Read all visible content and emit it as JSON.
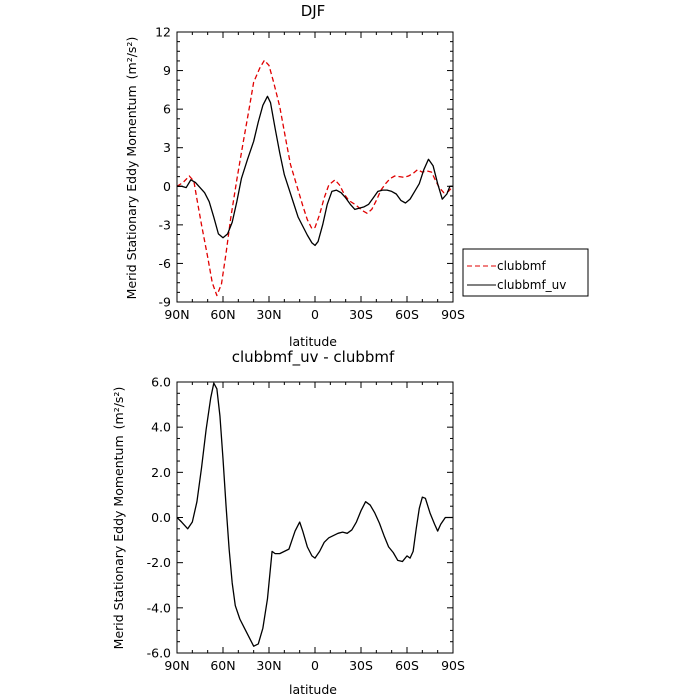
{
  "chart_data": [
    {
      "type": "line",
      "title": "DJF",
      "xlabel": "latitude",
      "ylabel": "Merid Stationary Eddy Momentum",
      "ylabel_unit": "(m²/s²)",
      "x_tick_labels": [
        "90N",
        "60N",
        "30N",
        "0",
        "30S",
        "60S",
        "90S"
      ],
      "x_ticks": [
        90,
        60,
        30,
        0,
        -30,
        -60,
        -90
      ],
      "xlim": [
        90,
        -90
      ],
      "ylim": [
        -9,
        12
      ],
      "y_ticks": [
        -9,
        -6,
        -3,
        0,
        3,
        6,
        9,
        12
      ],
      "y_tick_labels": [
        "-9",
        "-6",
        "-3",
        "0",
        "3",
        "6",
        "9",
        "12"
      ],
      "legend_position": "right, outside plot, lower",
      "series": [
        {
          "name": "clubbmf",
          "color": "#e00000",
          "dash": "dashed",
          "points": [
            [
              90,
              0
            ],
            [
              86,
              0.3
            ],
            [
              82,
              0.8
            ],
            [
              79,
              0.4
            ],
            [
              77,
              -1
            ],
            [
              74,
              -3
            ],
            [
              70,
              -5.5
            ],
            [
              67,
              -7.5
            ],
            [
              64,
              -8.5
            ],
            [
              61,
              -7.6
            ],
            [
              58,
              -5.2
            ],
            [
              55,
              -2.5
            ],
            [
              51,
              0.5
            ],
            [
              47,
              3.3
            ],
            [
              43,
              6
            ],
            [
              40,
              8.1
            ],
            [
              36,
              9.2
            ],
            [
              33,
              9.8
            ],
            [
              30,
              9.4
            ],
            [
              27,
              8.1
            ],
            [
              23,
              6.2
            ],
            [
              19,
              3.6
            ],
            [
              16,
              1.7
            ],
            [
              12,
              0.1
            ],
            [
              8,
              -1.5
            ],
            [
              5,
              -2.6
            ],
            [
              2,
              -3.3
            ],
            [
              0,
              -3.2
            ],
            [
              -3,
              -2.2
            ],
            [
              -6,
              -0.9
            ],
            [
              -9,
              0.1
            ],
            [
              -13,
              0.5
            ],
            [
              -16,
              0.1
            ],
            [
              -19,
              -0.6
            ],
            [
              -22,
              -1.1
            ],
            [
              -26,
              -1.4
            ],
            [
              -29,
              -1.7
            ],
            [
              -31,
              -1.9
            ],
            [
              -34,
              -2.1
            ],
            [
              -37,
              -1.8
            ],
            [
              -40,
              -1.1
            ],
            [
              -43,
              -0.3
            ],
            [
              -46,
              0.2
            ],
            [
              -49,
              0.6
            ],
            [
              -52,
              0.8
            ],
            [
              -55,
              0.75
            ],
            [
              -58,
              0.7
            ],
            [
              -61,
              0.8
            ],
            [
              -64,
              1
            ],
            [
              -67,
              1.3
            ],
            [
              -70,
              1.1
            ],
            [
              -73,
              1.2
            ],
            [
              -76,
              1.1
            ],
            [
              -78,
              0.6
            ],
            [
              -81,
              -0.1
            ],
            [
              -84,
              -0.5
            ],
            [
              -87,
              -0.4
            ],
            [
              -90,
              0
            ]
          ]
        },
        {
          "name": "clubbmf_uv",
          "color": "#000000",
          "dash": "solid",
          "points": [
            [
              90,
              0
            ],
            [
              87,
              0
            ],
            [
              84,
              -0.1
            ],
            [
              81,
              0.5
            ],
            [
              78,
              0.3
            ],
            [
              75,
              -0.1
            ],
            [
              72,
              -0.5
            ],
            [
              69,
              -1.2
            ],
            [
              66,
              -2.4
            ],
            [
              63,
              -3.7
            ],
            [
              60,
              -4
            ],
            [
              57,
              -3.7
            ],
            [
              54,
              -2.8
            ],
            [
              51,
              -1.2
            ],
            [
              48,
              0.6
            ],
            [
              44,
              2.1
            ],
            [
              40,
              3.5
            ],
            [
              37,
              5
            ],
            [
              34,
              6.3
            ],
            [
              31,
              7
            ],
            [
              29,
              6.5
            ],
            [
              26,
              4.5
            ],
            [
              23,
              2.6
            ],
            [
              20,
              0.9
            ],
            [
              17,
              -0.2
            ],
            [
              14,
              -1.3
            ],
            [
              11,
              -2.4
            ],
            [
              8,
              -3.1
            ],
            [
              5,
              -3.8
            ],
            [
              2,
              -4.4
            ],
            [
              0,
              -4.6
            ],
            [
              -2,
              -4.3
            ],
            [
              -5,
              -3
            ],
            [
              -8,
              -1.4
            ],
            [
              -11,
              -0.4
            ],
            [
              -14,
              -0.3
            ],
            [
              -17,
              -0.5
            ],
            [
              -20,
              -0.9
            ],
            [
              -23,
              -1.4
            ],
            [
              -26,
              -1.8
            ],
            [
              -29,
              -1.7
            ],
            [
              -32,
              -1.6
            ],
            [
              -35,
              -1.4
            ],
            [
              -38,
              -0.9
            ],
            [
              -41,
              -0.4
            ],
            [
              -44,
              -0.3
            ],
            [
              -47,
              -0.3
            ],
            [
              -50,
              -0.4
            ],
            [
              -53,
              -0.6
            ],
            [
              -56,
              -1.1
            ],
            [
              -59,
              -1.3
            ],
            [
              -62,
              -1
            ],
            [
              -65,
              -0.4
            ],
            [
              -68,
              0.2
            ],
            [
              -71,
              1.3
            ],
            [
              -74,
              2.1
            ],
            [
              -77,
              1.6
            ],
            [
              -80,
              0.2
            ],
            [
              -83,
              -1
            ],
            [
              -86,
              -0.6
            ],
            [
              -88,
              0
            ],
            [
              -90,
              0
            ]
          ]
        }
      ]
    },
    {
      "type": "line",
      "title": "clubbmf_uv - clubbmf",
      "xlabel": "latitude",
      "ylabel": "Merid Stationary Eddy Momentum",
      "ylabel_unit": "(m²/s²)",
      "x_tick_labels": [
        "90N",
        "60N",
        "30N",
        "0",
        "30S",
        "60S",
        "90S"
      ],
      "x_ticks": [
        90,
        60,
        30,
        0,
        -30,
        -60,
        -90
      ],
      "xlim": [
        90,
        -90
      ],
      "ylim": [
        -6,
        6
      ],
      "y_ticks": [
        -6,
        -4,
        -2,
        0,
        2,
        4,
        6
      ],
      "y_tick_labels": [
        "-6.0",
        "-4.0",
        "-2.0",
        "0.0",
        "2.0",
        "4.0",
        "6.0"
      ],
      "series": [
        {
          "color": "#000000",
          "dash": "solid",
          "points": [
            [
              90,
              0
            ],
            [
              87,
              -0.2
            ],
            [
              85,
              -0.35
            ],
            [
              83,
              -0.5
            ],
            [
              80,
              -0.2
            ],
            [
              77,
              0.7
            ],
            [
              74,
              2.2
            ],
            [
              71,
              3.9
            ],
            [
              68,
              5.3
            ],
            [
              66,
              5.95
            ],
            [
              64,
              5.7
            ],
            [
              62,
              4.5
            ],
            [
              60,
              2.6
            ],
            [
              58,
              0.5
            ],
            [
              56,
              -1.4
            ],
            [
              54,
              -2.9
            ],
            [
              52,
              -3.9
            ],
            [
              49,
              -4.5
            ],
            [
              46,
              -4.9
            ],
            [
              43,
              -5.3
            ],
            [
              40,
              -5.7
            ],
            [
              37,
              -5.6
            ],
            [
              34,
              -4.9
            ],
            [
              31,
              -3.6
            ],
            [
              28,
              -1.5
            ],
            [
              26,
              -1.6
            ],
            [
              23,
              -1.6
            ],
            [
              20,
              -1.5
            ],
            [
              17,
              -1.4
            ],
            [
              15,
              -1
            ],
            [
              13,
              -0.6
            ],
            [
              10,
              -0.2
            ],
            [
              8,
              -0.6
            ],
            [
              5,
              -1.3
            ],
            [
              2,
              -1.7
            ],
            [
              0,
              -1.8
            ],
            [
              -3,
              -1.5
            ],
            [
              -6,
              -1.1
            ],
            [
              -9,
              -0.9
            ],
            [
              -12,
              -0.8
            ],
            [
              -15,
              -0.7
            ],
            [
              -18,
              -0.65
            ],
            [
              -21,
              -0.7
            ],
            [
              -24,
              -0.55
            ],
            [
              -27,
              -0.2
            ],
            [
              -30,
              0.3
            ],
            [
              -33,
              0.7
            ],
            [
              -36,
              0.55
            ],
            [
              -39,
              0.2
            ],
            [
              -42,
              -0.25
            ],
            [
              -45,
              -0.8
            ],
            [
              -48,
              -1.3
            ],
            [
              -51,
              -1.55
            ],
            [
              -54,
              -1.9
            ],
            [
              -57,
              -1.95
            ],
            [
              -60,
              -1.7
            ],
            [
              -62,
              -1.8
            ],
            [
              -64,
              -1.5
            ],
            [
              -66,
              -0.5
            ],
            [
              -68,
              0.4
            ],
            [
              -70,
              0.9
            ],
            [
              -72,
              0.85
            ],
            [
              -75,
              0.2
            ],
            [
              -78,
              -0.3
            ],
            [
              -80,
              -0.6
            ],
            [
              -82,
              -0.3
            ],
            [
              -85,
              0
            ],
            [
              -88,
              0
            ],
            [
              -90,
              0
            ]
          ]
        }
      ]
    }
  ]
}
